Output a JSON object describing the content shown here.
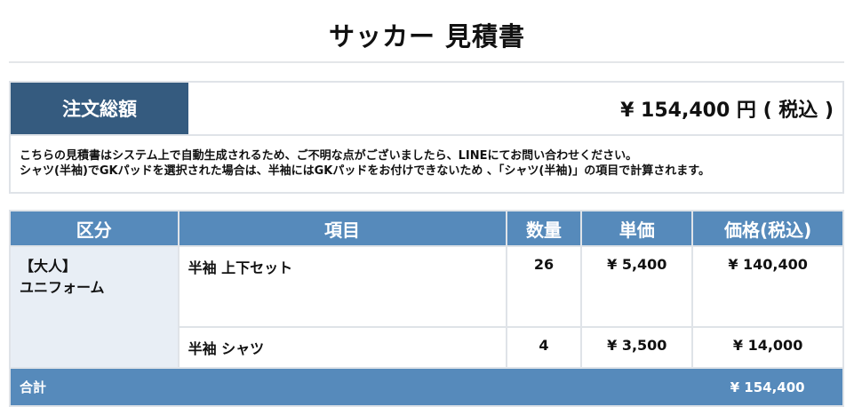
{
  "title": "サッカー 見積書",
  "summary": {
    "label": "注文総額",
    "value": "¥ 154,400 円 ( 税込 )",
    "notes": [
      "こちらの見積書はシステム上で自動生成されるため、ご不明な点がございましたら、LINEにてお問い合わせください。",
      "シャツ(半袖)でGKパッドを選択された場合は、半袖にはGKパッドをお付けできないため 、「シャツ(半袖)」の項目で計算されます。"
    ]
  },
  "table": {
    "headers": [
      "区分",
      "項目",
      "数量",
      "単価",
      "価格(税込)"
    ],
    "category": [
      "【大人】",
      "ユニフォーム"
    ],
    "rows": [
      {
        "item": "半袖 上下セット",
        "qty": "26",
        "unit": "¥ 5,400",
        "price": "¥ 140,400"
      },
      {
        "item": "半袖 シャツ",
        "qty": "4",
        "unit": "¥ 3,500",
        "price": "¥ 14,000"
      }
    ],
    "total_label": "合計",
    "total_value": "¥ 154,400"
  }
}
